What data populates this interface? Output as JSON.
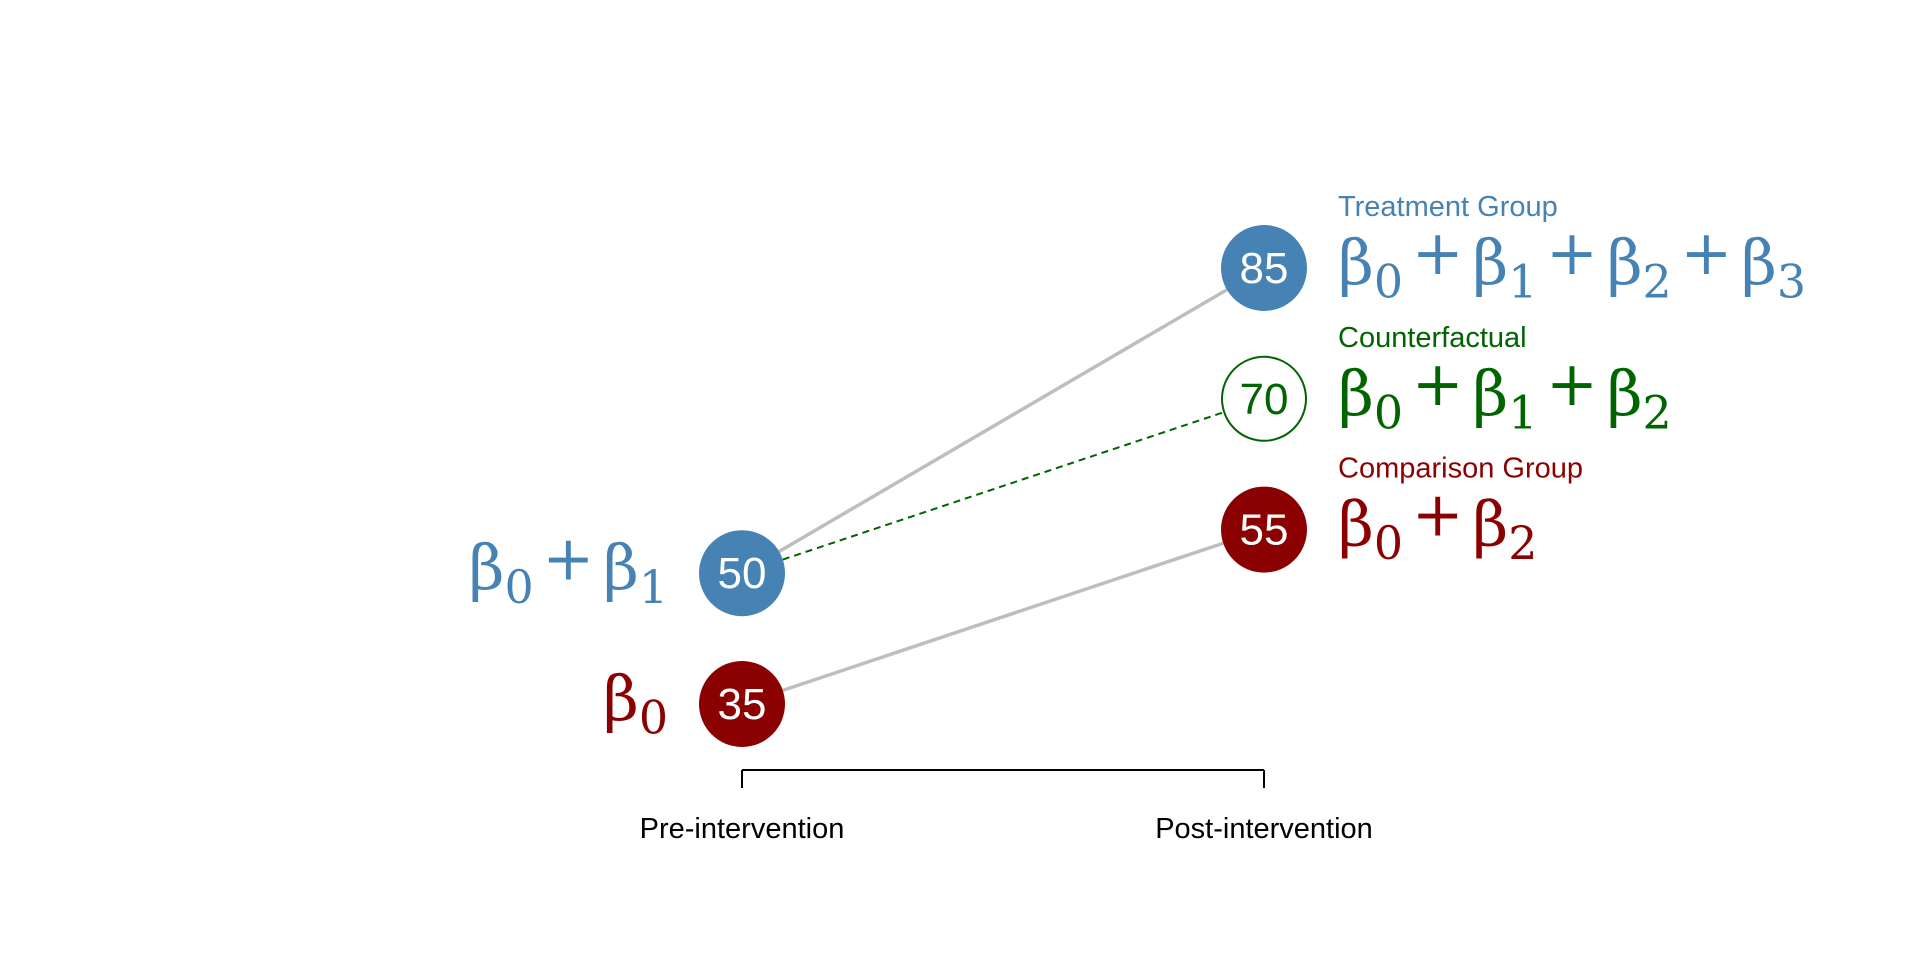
{
  "chart_data": {
    "type": "line",
    "x": [
      "Pre-intervention",
      "Post-intervention"
    ],
    "series": [
      {
        "name": "Treatment Group",
        "values": [
          50,
          85
        ],
        "color": "#4682B4",
        "line_style": "solid",
        "line_color": "#BEBEBE",
        "marker": "filled",
        "formulas": [
          {
            "terms": [
              {
                "base": "β",
                "sub": "0"
              },
              {
                "base": "β",
                "sub": "1"
              }
            ]
          },
          {
            "terms": [
              {
                "base": "β",
                "sub": "0"
              },
              {
                "base": "β",
                "sub": "1"
              },
              {
                "base": "β",
                "sub": "2"
              },
              {
                "base": "β",
                "sub": "3"
              }
            ]
          }
        ]
      },
      {
        "name": "Counterfactual",
        "values": [
          50,
          70
        ],
        "color": "#006400",
        "line_style": "dashed",
        "line_color": "#006400",
        "marker": "open",
        "formulas": [
          null,
          {
            "terms": [
              {
                "base": "β",
                "sub": "0"
              },
              {
                "base": "β",
                "sub": "1"
              },
              {
                "base": "β",
                "sub": "2"
              }
            ]
          }
        ]
      },
      {
        "name": "Comparison Group",
        "values": [
          35,
          55
        ],
        "color": "#8B0000",
        "line_style": "solid",
        "line_color": "#BEBEBE",
        "marker": "filled",
        "formulas": [
          {
            "terms": [
              {
                "base": "β",
                "sub": "0"
              }
            ]
          },
          {
            "terms": [
              {
                "base": "β",
                "sub": "0"
              },
              {
                "base": "β",
                "sub": "2"
              }
            ]
          }
        ]
      }
    ],
    "plus_sign": "+",
    "grid": false,
    "axis": "x-bracket-only"
  }
}
